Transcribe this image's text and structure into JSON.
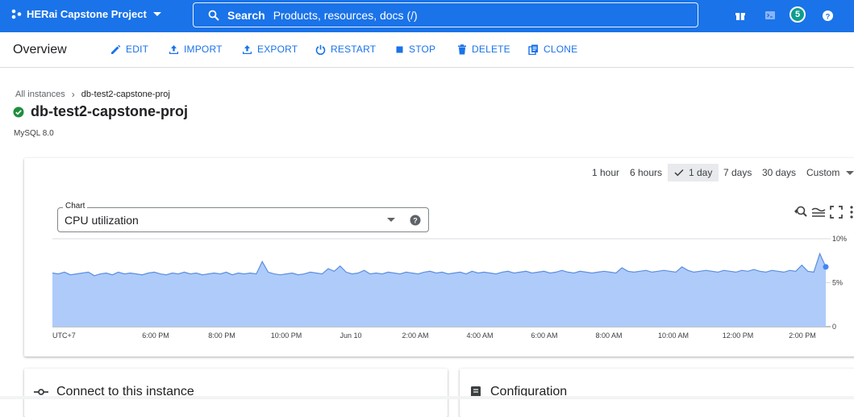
{
  "topbar": {
    "project_name": "HERai Capstone Project",
    "search_label": "Search",
    "search_placeholder": "Products, resources, docs (/)",
    "notification_count": "5",
    "accent": "#1a73e8"
  },
  "actionbar": {
    "page_title": "Overview",
    "actions": [
      {
        "label": "EDIT",
        "icon": "pencil-icon"
      },
      {
        "label": "IMPORT",
        "icon": "upload-icon"
      },
      {
        "label": "EXPORT",
        "icon": "export-icon"
      },
      {
        "label": "RESTART",
        "icon": "power-icon"
      },
      {
        "label": "STOP",
        "icon": "stop-icon"
      },
      {
        "label": "DELETE",
        "icon": "trash-icon"
      },
      {
        "label": "CLONE",
        "icon": "copy-icon"
      }
    ]
  },
  "breadcrumb": {
    "parent": "All instances",
    "current": "db-test2-capstone-proj"
  },
  "instance": {
    "name": "db-test2-capstone-proj",
    "version": "MySQL 8.0",
    "status_color": "#1e8e3e"
  },
  "time_ranges": {
    "options": [
      "1 hour",
      "6 hours",
      "1 day",
      "7 days",
      "30 days",
      "Custom"
    ],
    "selected": "1 day"
  },
  "chart_selector": {
    "label": "Chart",
    "value": "CPU utilization"
  },
  "bottom_cards": {
    "connect_title": "Connect to this instance",
    "config_title": "Configuration"
  },
  "chart_data": {
    "type": "area",
    "title": "",
    "xlabel": "",
    "ylabel": "",
    "x_tick_labels": [
      "UTC+7",
      "6:00 PM",
      "8:00 PM",
      "10:00 PM",
      "Jun 10",
      "2:00 AM",
      "4:00 AM",
      "6:00 AM",
      "8:00 AM",
      "10:00 AM",
      "12:00 PM",
      "2:00 PM"
    ],
    "y_tick_labels": [
      "10%",
      "5%",
      "0"
    ],
    "ylim": [
      0,
      10
    ],
    "grid": true,
    "series": [
      {
        "name": "",
        "color": "#aecbfa",
        "line_color": "#5b8fe0",
        "values": [
          6.1,
          6.0,
          6.2,
          5.9,
          6.0,
          6.1,
          6.2,
          5.8,
          6.0,
          6.1,
          5.9,
          6.2,
          6.0,
          6.1,
          6.0,
          5.9,
          6.1,
          6.2,
          6.0,
          5.9,
          6.1,
          6.0,
          6.2,
          6.0,
          6.1,
          5.9,
          6.0,
          6.1,
          6.0,
          6.2,
          5.9,
          6.1,
          6.0,
          6.1,
          6.0,
          7.4,
          6.2,
          6.0,
          5.9,
          6.0,
          6.1,
          5.9,
          6.0,
          6.2,
          6.1,
          6.0,
          6.6,
          6.3,
          6.9,
          6.2,
          6.0,
          6.1,
          6.4,
          6.0,
          6.1,
          6.0,
          6.2,
          6.1,
          6.0,
          6.2,
          6.1,
          6.0,
          6.2,
          6.3,
          6.1,
          6.2,
          6.0,
          6.1,
          6.2,
          6.0,
          6.3,
          6.1,
          6.2,
          6.1,
          6.0,
          6.2,
          6.3,
          6.1,
          6.2,
          6.3,
          6.1,
          6.2,
          6.3,
          6.1,
          6.2,
          6.4,
          6.2,
          6.1,
          6.3,
          6.2,
          6.1,
          6.2,
          6.3,
          6.2,
          6.1,
          6.7,
          6.3,
          6.2,
          6.3,
          6.4,
          6.2,
          6.3,
          6.4,
          6.3,
          6.2,
          6.8,
          6.4,
          6.2,
          6.3,
          6.4,
          6.3,
          6.2,
          6.4,
          6.3,
          6.2,
          6.4,
          6.3,
          6.5,
          6.3,
          6.2,
          6.4,
          6.3,
          6.2,
          6.4,
          6.3,
          7.0,
          6.3,
          6.2,
          8.3,
          6.8
        ]
      }
    ]
  }
}
